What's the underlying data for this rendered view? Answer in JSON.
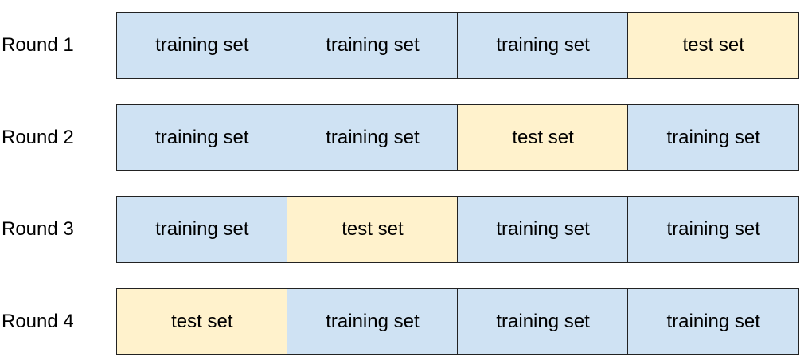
{
  "colors": {
    "training": "#cfe2f3",
    "test": "#fff2cc"
  },
  "rounds": [
    {
      "label": "Round 1",
      "cells": [
        {
          "text": "training set",
          "kind": "training"
        },
        {
          "text": "training set",
          "kind": "training"
        },
        {
          "text": "training set",
          "kind": "training"
        },
        {
          "text": "test set",
          "kind": "test"
        }
      ]
    },
    {
      "label": "Round 2",
      "cells": [
        {
          "text": "training set",
          "kind": "training"
        },
        {
          "text": "training set",
          "kind": "training"
        },
        {
          "text": "test set",
          "kind": "test"
        },
        {
          "text": "training set",
          "kind": "training"
        }
      ]
    },
    {
      "label": "Round 3",
      "cells": [
        {
          "text": "training set",
          "kind": "training"
        },
        {
          "text": "test set",
          "kind": "test"
        },
        {
          "text": "training set",
          "kind": "training"
        },
        {
          "text": "training set",
          "kind": "training"
        }
      ]
    },
    {
      "label": "Round 4",
      "cells": [
        {
          "text": "test set",
          "kind": "test"
        },
        {
          "text": "training set",
          "kind": "training"
        },
        {
          "text": "training set",
          "kind": "training"
        },
        {
          "text": "training set",
          "kind": "training"
        }
      ]
    }
  ]
}
